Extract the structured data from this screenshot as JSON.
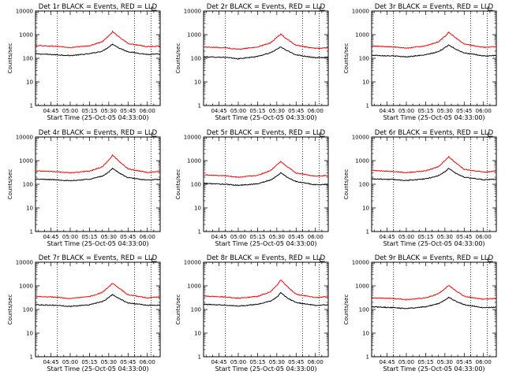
{
  "chart_data": [
    {
      "type": "line",
      "title": "Det 1r BLACK = Events, RED = LLD",
      "xlabel": "Start Time (25-Oct-05 04:33:00)",
      "ylabel": "Counts/sec",
      "yscale": "log",
      "ylim": [
        1,
        10000
      ],
      "xlim": [
        "04:33",
        "06:10"
      ],
      "x_ticks": [
        "04:45",
        "05:00",
        "05:15",
        "05:30",
        "05:45",
        "06:00"
      ],
      "y_ticks": [
        "1",
        "10",
        "100",
        "1000",
        "10000"
      ],
      "event_marks": [
        "04:50",
        "05:50",
        "06:03"
      ],
      "series": [
        {
          "color": "#000000",
          "x": [
            "04:33",
            "04:50",
            "05:00",
            "05:15",
            "05:25",
            "05:30",
            "05:33",
            "05:38",
            "05:45",
            "06:00",
            "06:10"
          ],
          "y": [
            155,
            140,
            130,
            155,
            200,
            300,
            400,
            270,
            190,
            145,
            150
          ]
        },
        {
          "color": "#ff0000",
          "x": [
            "04:33",
            "04:50",
            "05:00",
            "05:15",
            "05:25",
            "05:30",
            "05:33",
            "05:38",
            "05:45",
            "06:00",
            "06:10"
          ],
          "y": [
            350,
            320,
            280,
            340,
            500,
            900,
            1350,
            800,
            420,
            310,
            330
          ]
        }
      ]
    },
    {
      "type": "line",
      "title": "Det 2r BLACK = Events, RED = LLD",
      "xlabel": "Start Time (25-Oct-05 04:33:00)",
      "ylabel": "Counts/sec",
      "yscale": "log",
      "ylim": [
        1,
        10000
      ],
      "xlim": [
        "04:33",
        "06:10"
      ],
      "x_ticks": [
        "04:45",
        "05:00",
        "05:15",
        "05:30",
        "05:45",
        "06:00"
      ],
      "y_ticks": [
        "1",
        "10",
        "100",
        "1000",
        "10000"
      ],
      "event_marks": [
        "04:50",
        "05:50",
        "06:03"
      ],
      "series": [
        {
          "color": "#000000",
          "x": [
            "04:33",
            "04:50",
            "05:00",
            "05:15",
            "05:25",
            "05:30",
            "05:33",
            "05:38",
            "05:45",
            "06:00",
            "06:10"
          ],
          "y": [
            115,
            110,
            95,
            120,
            170,
            240,
            300,
            210,
            140,
            105,
            110
          ]
        },
        {
          "color": "#ff0000",
          "x": [
            "04:33",
            "04:50",
            "05:00",
            "05:15",
            "05:25",
            "05:30",
            "05:33",
            "05:38",
            "05:45",
            "06:00",
            "06:10"
          ],
          "y": [
            300,
            280,
            240,
            300,
            450,
            750,
            1050,
            650,
            350,
            260,
            280
          ]
        }
      ]
    },
    {
      "type": "line",
      "title": "Det 3r BLACK = Events, RED = LLD",
      "xlabel": "Start Time (25-Oct-05 04:33:00)",
      "ylabel": "Counts/sec",
      "yscale": "log",
      "ylim": [
        1,
        10000
      ],
      "xlim": [
        "04:33",
        "06:10"
      ],
      "x_ticks": [
        "04:45",
        "05:00",
        "05:15",
        "05:30",
        "05:45",
        "06:00"
      ],
      "y_ticks": [
        "1",
        "10",
        "100",
        "1000",
        "10000"
      ],
      "event_marks": [
        "04:50",
        "05:50",
        "06:03"
      ],
      "series": [
        {
          "color": "#000000",
          "x": [
            "04:33",
            "04:50",
            "05:00",
            "05:15",
            "05:25",
            "05:30",
            "05:33",
            "05:38",
            "05:45",
            "06:00",
            "06:10"
          ],
          "y": [
            135,
            125,
            115,
            140,
            190,
            280,
            370,
            250,
            170,
            125,
            130
          ]
        },
        {
          "color": "#ff0000",
          "x": [
            "04:33",
            "04:50",
            "05:00",
            "05:15",
            "05:25",
            "05:30",
            "05:33",
            "05:38",
            "05:45",
            "06:00",
            "06:10"
          ],
          "y": [
            330,
            300,
            270,
            330,
            500,
            850,
            1250,
            750,
            400,
            290,
            310
          ]
        }
      ]
    },
    {
      "type": "line",
      "title": "Det 4r BLACK = Events, RED = LLD",
      "xlabel": "Start Time (25-Oct-05 04:33:00)",
      "ylabel": "Counts/sec",
      "yscale": "log",
      "ylim": [
        1,
        10000
      ],
      "xlim": [
        "04:33",
        "06:10"
      ],
      "x_ticks": [
        "04:45",
        "05:00",
        "05:15",
        "05:30",
        "05:45",
        "06:00"
      ],
      "y_ticks": [
        "1",
        "10",
        "100",
        "1000",
        "10000"
      ],
      "event_marks": [
        "04:50",
        "05:50",
        "06:03"
      ],
      "series": [
        {
          "color": "#000000",
          "x": [
            "04:33",
            "04:50",
            "05:00",
            "05:15",
            "05:25",
            "05:30",
            "05:33",
            "05:38",
            "05:45",
            "06:00",
            "06:10"
          ],
          "y": [
            165,
            155,
            140,
            165,
            220,
            330,
            480,
            300,
            190,
            150,
            160
          ]
        },
        {
          "color": "#ff0000",
          "x": [
            "04:33",
            "04:50",
            "05:00",
            "05:15",
            "05:25",
            "05:30",
            "05:33",
            "05:38",
            "05:45",
            "06:00",
            "06:10"
          ],
          "y": [
            370,
            340,
            300,
            360,
            550,
            1050,
            1700,
            950,
            450,
            320,
            350
          ]
        }
      ]
    },
    {
      "type": "line",
      "title": "Det 5r BLACK = Events, RED = LLD",
      "xlabel": "Start Time (25-Oct-05 04:33:00)",
      "ylabel": "Counts/sec",
      "yscale": "log",
      "ylim": [
        1,
        10000
      ],
      "xlim": [
        "04:33",
        "06:10"
      ],
      "x_ticks": [
        "04:45",
        "05:00",
        "05:15",
        "05:30",
        "05:45",
        "06:00"
      ],
      "y_ticks": [
        "1",
        "10",
        "100",
        "1000",
        "10000"
      ],
      "event_marks": [
        "04:50",
        "05:50",
        "06:03"
      ],
      "series": [
        {
          "color": "#000000",
          "x": [
            "04:33",
            "04:50",
            "05:00",
            "05:15",
            "05:25",
            "05:30",
            "05:33",
            "05:38",
            "05:45",
            "06:00",
            "06:10"
          ],
          "y": [
            110,
            100,
            90,
            105,
            150,
            220,
            310,
            200,
            130,
            95,
            100
          ]
        },
        {
          "color": "#ff0000",
          "x": [
            "04:33",
            "04:50",
            "05:00",
            "05:15",
            "05:25",
            "05:30",
            "05:33",
            "05:38",
            "05:45",
            "06:00",
            "06:10"
          ],
          "y": [
            250,
            230,
            200,
            240,
            380,
            650,
            900,
            560,
            300,
            220,
            240
          ]
        }
      ]
    },
    {
      "type": "line",
      "title": "Det 6r BLACK = Events, RED = LLD",
      "xlabel": "Start Time (25-Oct-05 04:33:00)",
      "ylabel": "Counts/sec",
      "yscale": "log",
      "ylim": [
        1,
        10000
      ],
      "xlim": [
        "04:33",
        "06:10"
      ],
      "x_ticks": [
        "04:45",
        "05:00",
        "05:15",
        "05:30",
        "05:45",
        "06:00"
      ],
      "y_ticks": [
        "1",
        "10",
        "100",
        "1000",
        "10000"
      ],
      "event_marks": [
        "04:50",
        "05:50",
        "06:03"
      ],
      "series": [
        {
          "color": "#000000",
          "x": [
            "04:33",
            "04:50",
            "05:00",
            "05:15",
            "05:25",
            "05:30",
            "05:33",
            "05:38",
            "05:45",
            "06:00",
            "06:10"
          ],
          "y": [
            170,
            160,
            145,
            170,
            230,
            340,
            470,
            300,
            200,
            155,
            165
          ]
        },
        {
          "color": "#ff0000",
          "x": [
            "04:33",
            "04:50",
            "05:00",
            "05:15",
            "05:25",
            "05:30",
            "05:33",
            "05:38",
            "05:45",
            "06:00",
            "06:10"
          ],
          "y": [
            380,
            350,
            310,
            370,
            560,
            1000,
            1450,
            850,
            430,
            330,
            360
          ]
        }
      ]
    },
    {
      "type": "line",
      "title": "Det 7r BLACK = Events, RED = LLD",
      "xlabel": "Start Time (25-Oct-05 04:33:00)",
      "ylabel": "Counts/sec",
      "yscale": "log",
      "ylim": [
        1,
        10000
      ],
      "xlim": [
        "04:33",
        "06:10"
      ],
      "x_ticks": [
        "04:45",
        "05:00",
        "05:15",
        "05:30",
        "05:45",
        "06:00"
      ],
      "y_ticks": [
        "1",
        "10",
        "100",
        "1000",
        "10000"
      ],
      "event_marks": [
        "04:50",
        "05:50",
        "06:03"
      ],
      "series": [
        {
          "color": "#000000",
          "x": [
            "04:33",
            "04:50",
            "05:00",
            "05:15",
            "05:25",
            "05:30",
            "05:33",
            "05:38",
            "05:45",
            "06:00",
            "06:10"
          ],
          "y": [
            160,
            150,
            135,
            160,
            215,
            320,
            430,
            290,
            190,
            150,
            155
          ]
        },
        {
          "color": "#ff0000",
          "x": [
            "04:33",
            "04:50",
            "05:00",
            "05:15",
            "05:25",
            "05:30",
            "05:33",
            "05:38",
            "05:45",
            "06:00",
            "06:10"
          ],
          "y": [
            360,
            330,
            290,
            350,
            530,
            900,
            1300,
            800,
            420,
            310,
            340
          ]
        }
      ]
    },
    {
      "type": "line",
      "title": "Det 8r BLACK = Events, RED = LLD",
      "xlabel": "Start Time (25-Oct-05 04:33:00)",
      "ylabel": "Counts/sec",
      "yscale": "log",
      "ylim": [
        1,
        10000
      ],
      "xlim": [
        "04:33",
        "06:10"
      ],
      "x_ticks": [
        "04:45",
        "05:00",
        "05:15",
        "05:30",
        "05:45",
        "06:00"
      ],
      "y_ticks": [
        "1",
        "10",
        "100",
        "1000",
        "10000"
      ],
      "event_marks": [
        "04:50",
        "05:50",
        "06:03"
      ],
      "series": [
        {
          "color": "#000000",
          "x": [
            "04:33",
            "04:50",
            "05:00",
            "05:15",
            "05:25",
            "05:30",
            "05:33",
            "05:38",
            "05:45",
            "06:00",
            "06:10"
          ],
          "y": [
            165,
            155,
            140,
            165,
            225,
            330,
            520,
            310,
            195,
            150,
            160
          ]
        },
        {
          "color": "#ff0000",
          "x": [
            "04:33",
            "04:50",
            "05:00",
            "05:15",
            "05:25",
            "05:30",
            "05:33",
            "05:38",
            "05:45",
            "06:00",
            "06:10"
          ],
          "y": [
            370,
            340,
            300,
            360,
            560,
            1050,
            1800,
            950,
            440,
            320,
            350
          ]
        }
      ]
    },
    {
      "type": "line",
      "title": "Det 9r BLACK = Events, RED = LLD",
      "xlabel": "Start Time (25-Oct-05 04:33:00)",
      "ylabel": "Counts/sec",
      "yscale": "log",
      "ylim": [
        1,
        10000
      ],
      "xlim": [
        "04:33",
        "06:10"
      ],
      "x_ticks": [
        "04:45",
        "05:00",
        "05:15",
        "05:30",
        "05:45",
        "06:00"
      ],
      "y_ticks": [
        "1",
        "10",
        "100",
        "1000",
        "10000"
      ],
      "event_marks": [
        "04:50",
        "05:50",
        "06:03"
      ],
      "series": [
        {
          "color": "#000000",
          "x": [
            "04:33",
            "04:50",
            "05:00",
            "05:15",
            "05:25",
            "05:30",
            "05:33",
            "05:38",
            "05:45",
            "06:00",
            "06:10"
          ],
          "y": [
            130,
            120,
            110,
            130,
            180,
            250,
            330,
            230,
            160,
            120,
            125
          ]
        },
        {
          "color": "#ff0000",
          "x": [
            "04:33",
            "04:50",
            "05:00",
            "05:15",
            "05:25",
            "05:30",
            "05:33",
            "05:38",
            "05:45",
            "06:00",
            "06:10"
          ],
          "y": [
            310,
            290,
            260,
            310,
            460,
            750,
            1050,
            650,
            360,
            270,
            290
          ]
        }
      ]
    }
  ]
}
